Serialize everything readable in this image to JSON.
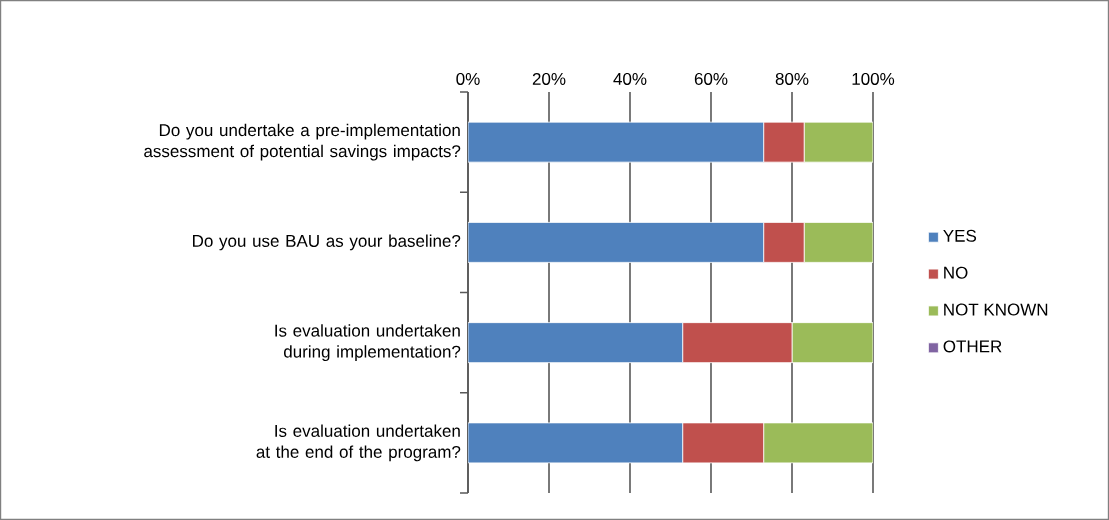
{
  "chart_data": {
    "type": "bar",
    "orientation": "horizontal",
    "stacked": true,
    "categories": [
      "Do you undertake a pre-implementation assessment of potential savings impacts?",
      "Do you use BAU as your baseline?",
      "Is evaluation undertaken during implementation?",
      "Is evaluation undertaken at the end of the program?"
    ],
    "series": [
      {
        "name": "YES",
        "color": "#4f81bd",
        "values": [
          73,
          73,
          53,
          53
        ]
      },
      {
        "name": "NO",
        "color": "#c0504d",
        "values": [
          10,
          10,
          27,
          20
        ]
      },
      {
        "name": "NOT KNOWN",
        "color": "#9bbb59",
        "values": [
          17,
          17,
          20,
          27
        ]
      },
      {
        "name": "OTHER",
        "color": "#8064a2",
        "values": [
          0,
          0,
          0,
          0
        ]
      }
    ],
    "xlim": [
      0,
      100
    ],
    "xticks": [
      {
        "value": 0,
        "label": "0%"
      },
      {
        "value": 20,
        "label": "20%"
      },
      {
        "value": 40,
        "label": "40%"
      },
      {
        "value": 60,
        "label": "60%"
      },
      {
        "value": 80,
        "label": "80%"
      },
      {
        "value": 100,
        "label": "100%"
      }
    ],
    "grid": "x",
    "legend": "right"
  }
}
